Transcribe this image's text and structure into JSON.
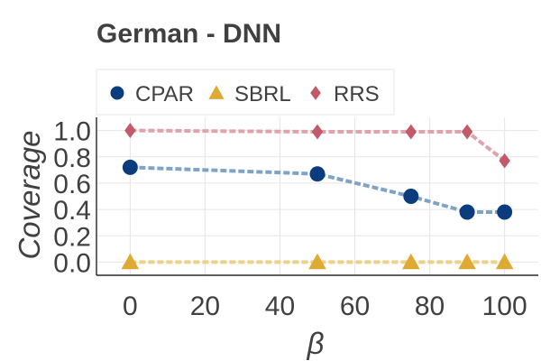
{
  "chart_data": {
    "type": "line",
    "title": "German - DNN",
    "xlabel": "β",
    "ylabel": "Coverage",
    "x": [
      0,
      50,
      75,
      90,
      100
    ],
    "xlim": [
      -9,
      109
    ],
    "ylim": [
      -0.1,
      1.1
    ],
    "xticks": [
      "0",
      "20",
      "40",
      "60",
      "80",
      "100"
    ],
    "yticks": [
      "0.0",
      "0.2",
      "0.4",
      "0.6",
      "0.8",
      "1.0"
    ],
    "grid": true,
    "legend_position": "top",
    "series": [
      {
        "name": "CPAR",
        "values": [
          0.72,
          0.67,
          0.5,
          0.38,
          0.38
        ],
        "color": "#0b3d7e",
        "line_color": "#7fa3c4",
        "marker": "circle"
      },
      {
        "name": "SBRL",
        "values": [
          0.0,
          0.0,
          0.0,
          0.0,
          0.0
        ],
        "color": "#deaa33",
        "line_color": "#ead18c",
        "marker": "triangle"
      },
      {
        "name": "RRS",
        "values": [
          1.0,
          0.99,
          0.99,
          0.99,
          0.77
        ],
        "color": "#c25a6a",
        "line_color": "#dfa3ad",
        "marker": "diamond"
      }
    ]
  }
}
